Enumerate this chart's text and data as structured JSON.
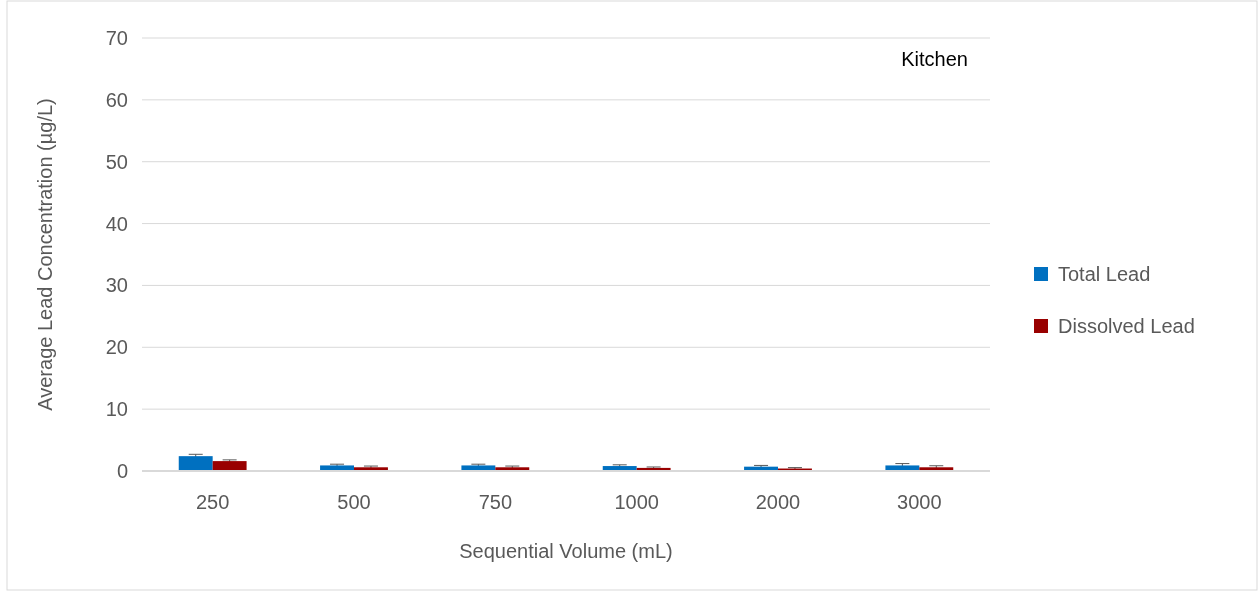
{
  "chart_data": {
    "type": "bar",
    "xlabel": "Sequential Volume (mL)",
    "ylabel": "Average Lead Concentration (µg/L)",
    "annotations": [
      "Kitchen"
    ],
    "categories": [
      "250",
      "500",
      "750",
      "1000",
      "2000",
      "3000"
    ],
    "series": [
      {
        "name": "Total Lead",
        "color": "#0070c0",
        "values": [
          2.4,
          0.9,
          0.9,
          0.8,
          0.7,
          0.9
        ],
        "errors": [
          0.3,
          0.2,
          0.2,
          0.2,
          0.2,
          0.3
        ]
      },
      {
        "name": "Dissolved Lead",
        "color": "#990000",
        "values": [
          1.6,
          0.6,
          0.6,
          0.5,
          0.4,
          0.6
        ],
        "errors": [
          0.2,
          0.2,
          0.2,
          0.15,
          0.15,
          0.25
        ]
      }
    ],
    "ylim": [
      0,
      70
    ],
    "yticks": [
      0,
      10,
      20,
      30,
      40,
      50,
      60,
      70
    ],
    "grid": "y",
    "legend": "right"
  }
}
